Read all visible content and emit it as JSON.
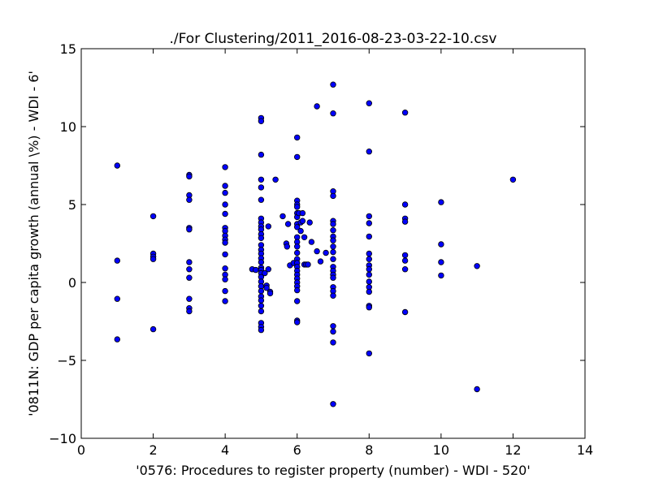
{
  "chart_data": {
    "type": "scatter",
    "title": "./For Clustering/2011_2016-08-23-03-22-10.csv",
    "xlabel": "'0576: Procedures to register property  (number) - WDI - 520'",
    "ylabel": "'0811N: GDP per capita growth  (annual \\%) - WDI - 6'",
    "xlim": [
      0,
      14
    ],
    "ylim": [
      -10,
      15
    ],
    "xticks": [
      "0",
      "2",
      "4",
      "6",
      "8",
      "10",
      "12",
      "14"
    ],
    "yticks": [
      "−10",
      "−5",
      "0",
      "5",
      "10",
      "15"
    ],
    "grid": false,
    "marker_color": "#0000ff",
    "points": [
      [
        1,
        7.5
      ],
      [
        1,
        1.4
      ],
      [
        1,
        -1.05
      ],
      [
        1,
        -3.65
      ],
      [
        2,
        4.25
      ],
      [
        2,
        1.85
      ],
      [
        2,
        1.65
      ],
      [
        2,
        1.5
      ],
      [
        2,
        -3.0
      ],
      [
        3,
        6.9
      ],
      [
        3,
        6.8
      ],
      [
        3,
        5.6
      ],
      [
        3,
        5.3
      ],
      [
        3,
        3.5
      ],
      [
        3,
        3.4
      ],
      [
        3,
        1.3
      ],
      [
        3,
        0.85
      ],
      [
        3,
        0.3
      ],
      [
        3,
        -1.05
      ],
      [
        3,
        -1.65
      ],
      [
        3,
        -1.85
      ],
      [
        4,
        7.4
      ],
      [
        4,
        6.2
      ],
      [
        4,
        5.75
      ],
      [
        4,
        5.0
      ],
      [
        4,
        4.4
      ],
      [
        4,
        3.5
      ],
      [
        4,
        3.3
      ],
      [
        4,
        3.0
      ],
      [
        4,
        2.75
      ],
      [
        4,
        2.55
      ],
      [
        4,
        1.8
      ],
      [
        4,
        0.9
      ],
      [
        4,
        0.5
      ],
      [
        4,
        0.2
      ],
      [
        4,
        -0.55
      ],
      [
        4,
        -1.2
      ],
      [
        4.75,
        0.85
      ],
      [
        4.85,
        0.8
      ],
      [
        5,
        10.55
      ],
      [
        5,
        10.35
      ],
      [
        5,
        8.2
      ],
      [
        5,
        6.6
      ],
      [
        5,
        6.1
      ],
      [
        5,
        5.3
      ],
      [
        5,
        4.1
      ],
      [
        5,
        3.85
      ],
      [
        5,
        3.6
      ],
      [
        5,
        3.4
      ],
      [
        5,
        3.1
      ],
      [
        5,
        2.85
      ],
      [
        5,
        2.4
      ],
      [
        5,
        2.1
      ],
      [
        5,
        1.85
      ],
      [
        5,
        1.55
      ],
      [
        5,
        1.3
      ],
      [
        5,
        0.95
      ],
      [
        5,
        0.8
      ],
      [
        5,
        0.6
      ],
      [
        5,
        0.35
      ],
      [
        5,
        0.05
      ],
      [
        5,
        -0.25
      ],
      [
        5,
        -0.55
      ],
      [
        5,
        -0.9
      ],
      [
        5,
        -1.15
      ],
      [
        5,
        -1.5
      ],
      [
        5,
        -1.85
      ],
      [
        5,
        -2.6
      ],
      [
        5,
        -2.85
      ],
      [
        5,
        -3.05
      ],
      [
        5.1,
        0.6
      ],
      [
        5.15,
        -0.2
      ],
      [
        5.15,
        -0.35
      ],
      [
        5.2,
        3.6
      ],
      [
        5.2,
        0.85
      ],
      [
        5.25,
        -0.6
      ],
      [
        5.25,
        -0.7
      ],
      [
        5.4,
        6.6
      ],
      [
        5.6,
        4.25
      ],
      [
        5.7,
        2.5
      ],
      [
        5.72,
        2.3
      ],
      [
        5.75,
        3.75
      ],
      [
        5.8,
        1.1
      ],
      [
        5.9,
        1.25
      ],
      [
        6,
        9.3
      ],
      [
        6,
        8.05
      ],
      [
        6,
        5.25
      ],
      [
        6,
        5.0
      ],
      [
        6,
        4.85
      ],
      [
        6,
        4.45
      ],
      [
        6,
        4.2
      ],
      [
        6,
        3.75
      ],
      [
        6,
        3.55
      ],
      [
        6,
        2.9
      ],
      [
        6,
        2.6
      ],
      [
        6,
        2.3
      ],
      [
        6,
        1.9
      ],
      [
        6,
        1.5
      ],
      [
        6,
        1.25
      ],
      [
        6,
        1.0
      ],
      [
        6,
        0.75
      ],
      [
        6,
        0.5
      ],
      [
        6,
        0.25
      ],
      [
        6,
        0.0
      ],
      [
        6,
        -0.25
      ],
      [
        6,
        -0.5
      ],
      [
        6,
        -1.2
      ],
      [
        6,
        -2.45
      ],
      [
        6,
        -2.55
      ],
      [
        6.05,
        4.45
      ],
      [
        6.1,
        3.85
      ],
      [
        6.1,
        3.3
      ],
      [
        6.15,
        4.45
      ],
      [
        6.15,
        3.95
      ],
      [
        6.2,
        2.9
      ],
      [
        6.2,
        1.15
      ],
      [
        6.25,
        1.15
      ],
      [
        6.3,
        1.15
      ],
      [
        6.35,
        3.85
      ],
      [
        6.4,
        2.6
      ],
      [
        6.55,
        2.0
      ],
      [
        6.55,
        11.3
      ],
      [
        6.65,
        1.35
      ],
      [
        6.8,
        1.9
      ],
      [
        7,
        12.7
      ],
      [
        7,
        10.85
      ],
      [
        7,
        5.85
      ],
      [
        7,
        5.55
      ],
      [
        7,
        3.95
      ],
      [
        7,
        3.75
      ],
      [
        7,
        3.35
      ],
      [
        7,
        2.95
      ],
      [
        7,
        2.7
      ],
      [
        7,
        2.3
      ],
      [
        7,
        1.95
      ],
      [
        7,
        1.5
      ],
      [
        7,
        1.0
      ],
      [
        7,
        0.75
      ],
      [
        7,
        0.5
      ],
      [
        7,
        0.3
      ],
      [
        7,
        -0.3
      ],
      [
        7,
        -0.55
      ],
      [
        7,
        -0.85
      ],
      [
        7,
        -2.8
      ],
      [
        7,
        -3.15
      ],
      [
        7,
        -3.85
      ],
      [
        7,
        -7.8
      ],
      [
        8,
        11.5
      ],
      [
        8,
        8.4
      ],
      [
        8,
        4.25
      ],
      [
        8,
        3.8
      ],
      [
        8,
        2.95
      ],
      [
        8,
        1.85
      ],
      [
        8,
        1.5
      ],
      [
        8,
        1.1
      ],
      [
        8,
        0.85
      ],
      [
        8,
        0.5
      ],
      [
        8,
        0.05
      ],
      [
        8,
        -0.3
      ],
      [
        8,
        -0.6
      ],
      [
        8,
        -1.5
      ],
      [
        8,
        -1.6
      ],
      [
        8,
        -4.55
      ],
      [
        9,
        10.9
      ],
      [
        9,
        5.0
      ],
      [
        9,
        4.1
      ],
      [
        9,
        3.9
      ],
      [
        9,
        1.75
      ],
      [
        9,
        1.4
      ],
      [
        9,
        0.85
      ],
      [
        9,
        -1.9
      ],
      [
        10,
        5.15
      ],
      [
        10,
        2.45
      ],
      [
        10,
        1.3
      ],
      [
        10,
        0.45
      ],
      [
        11,
        1.05
      ],
      [
        11,
        -6.85
      ],
      [
        12,
        6.6
      ]
    ]
  }
}
